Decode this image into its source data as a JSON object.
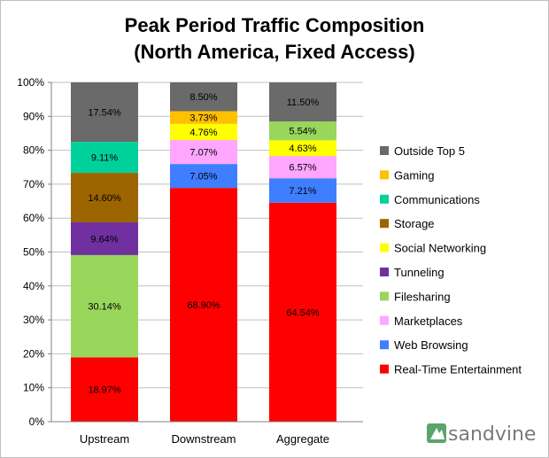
{
  "chart_data": {
    "type": "bar",
    "stacked": true,
    "title": [
      "Peak Period Traffic Composition",
      "(North America, Fixed Access)"
    ],
    "xlabel": "",
    "ylabel": "",
    "ylim": [
      0,
      100
    ],
    "y_ticks": [
      "0%",
      "10%",
      "20%",
      "30%",
      "40%",
      "50%",
      "60%",
      "70%",
      "80%",
      "90%",
      "100%"
    ],
    "grid": true,
    "legend_position": "right",
    "categories": [
      "Upstream",
      "Downstream",
      "Aggregate"
    ],
    "series": [
      {
        "name": "Real-Time Entertainment",
        "color": "#ff0000",
        "values": [
          18.97,
          68.9,
          64.54
        ],
        "labels": [
          "18.97%",
          "68.90%",
          "64.54%"
        ]
      },
      {
        "name": "Web Browsing",
        "color": "#3f7fff",
        "values": [
          0,
          7.05,
          7.21
        ],
        "labels": [
          "",
          "7.05%",
          "7.21%"
        ]
      },
      {
        "name": "Marketplaces",
        "color": "#ffa6ff",
        "values": [
          0,
          7.07,
          6.57
        ],
        "labels": [
          "",
          "7.07%",
          "6.57%"
        ]
      },
      {
        "name": "Filesharing",
        "color": "#99d65c",
        "values": [
          30.14,
          0,
          0
        ],
        "labels": [
          "30.14%",
          "",
          ""
        ]
      },
      {
        "name": "Tunneling",
        "color": "#7030a0",
        "values": [
          9.64,
          0,
          0
        ],
        "labels": [
          "9.64%",
          "",
          ""
        ]
      },
      {
        "name": "Social Networking",
        "color": "#ffff00",
        "values": [
          0,
          4.76,
          4.63
        ],
        "labels": [
          "",
          "4.76%",
          "4.63%"
        ]
      },
      {
        "name": "Storage",
        "color": "#9c6500",
        "values": [
          14.6,
          0,
          0
        ],
        "labels": [
          "14.60%",
          "",
          ""
        ]
      },
      {
        "name": "Communications",
        "color": "#00d19b",
        "values": [
          9.11,
          0,
          0
        ],
        "labels": [
          "9.11%",
          "",
          ""
        ]
      },
      {
        "name": "Gaming",
        "color": "#ffc000",
        "values": [
          0,
          3.73,
          0
        ],
        "labels": [
          "",
          "3.73%",
          ""
        ]
      },
      {
        "name": "Filesharing",
        "color": "#99d65c",
        "values": [
          0,
          0,
          5.54
        ],
        "labels": [
          "",
          "",
          "5.54%"
        ],
        "hide_in_legend": true
      },
      {
        "name": "Outside Top 5",
        "color": "#6a6a6a",
        "values": [
          17.54,
          8.5,
          11.5
        ],
        "labels": [
          "17.54%",
          "8.50%",
          "11.50%"
        ]
      }
    ],
    "legend": [
      {
        "name": "Outside Top 5",
        "color": "#6a6a6a"
      },
      {
        "name": "Gaming",
        "color": "#ffc000"
      },
      {
        "name": "Communications",
        "color": "#00d19b"
      },
      {
        "name": "Storage",
        "color": "#9c6500"
      },
      {
        "name": "Social Networking",
        "color": "#ffff00"
      },
      {
        "name": "Tunneling",
        "color": "#7030a0"
      },
      {
        "name": "Filesharing",
        "color": "#99d65c"
      },
      {
        "name": "Marketplaces",
        "color": "#ffa6ff"
      },
      {
        "name": "Web Browsing",
        "color": "#3f7fff"
      },
      {
        "name": "Real-Time Entertainment",
        "color": "#ff0000"
      }
    ]
  },
  "brand": {
    "name": "sandvine",
    "icon": "sandvine-logo-icon",
    "color": "#7a7a7a",
    "accent": "#5aa56a"
  }
}
